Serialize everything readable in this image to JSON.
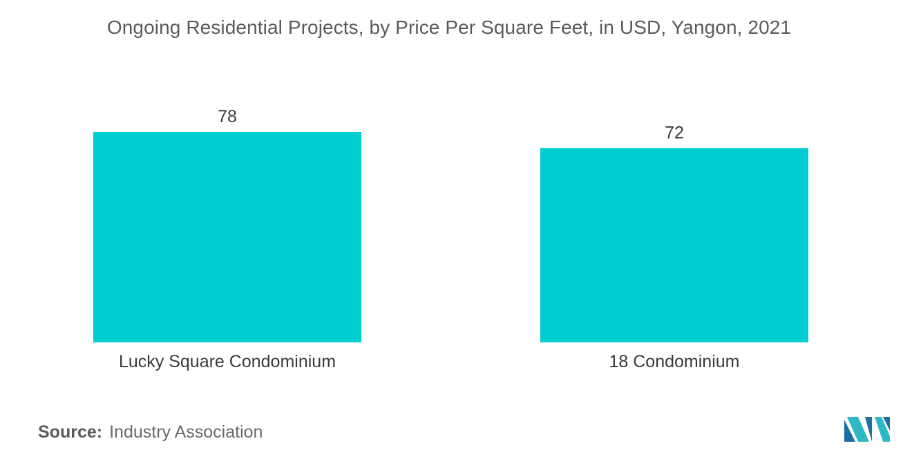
{
  "chart_data": {
    "type": "bar",
    "title": "Ongoing Residential Projects, by Price Per Square Feet, in USD, Yangon, 2021",
    "categories": [
      "Lucky Square Condominium",
      "18 Condominium"
    ],
    "values": [
      78,
      72
    ],
    "value_labels": [
      "78",
      "72"
    ],
    "xlabel": "",
    "ylabel": "",
    "ylim": [
      0,
      85
    ],
    "grid": false,
    "legend": "none",
    "bar_color": "#00ced1"
  },
  "source": {
    "label": "Source:",
    "text": "Industry Association"
  },
  "logo": {
    "icon": "mordor-intelligence-logo",
    "colors": [
      "#1b6fa3",
      "#2fb8c4"
    ]
  }
}
